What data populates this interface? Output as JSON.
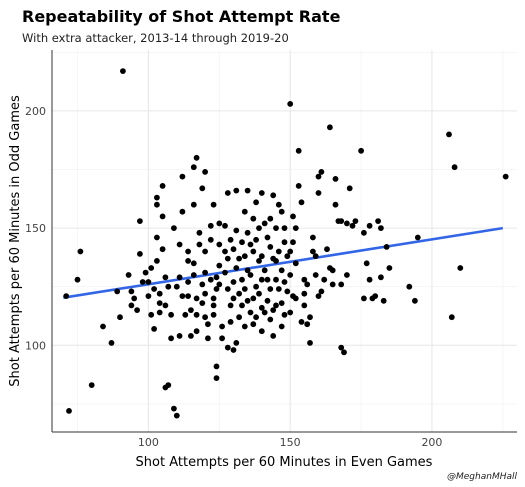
{
  "header": {
    "title": "Repeatability of Shot Attempt Rate",
    "subtitle": "With extra attacker, 2013-14 through 2019-20"
  },
  "caption": "@MeghanMHall",
  "chart_data": {
    "type": "scatter",
    "title": "Repeatability of Shot Attempt Rate",
    "subtitle": "With extra attacker, 2013-14 through 2019-20",
    "xlabel": "Shot Attempts per 60 Minutes in Even Games",
    "ylabel": "Shot Attempts per 60 Minutes in Odd Games",
    "xlim": [
      66,
      230
    ],
    "ylim": [
      63,
      226
    ],
    "xticks": [
      100,
      150,
      200
    ],
    "yticks": [
      100,
      150,
      200
    ],
    "grid": true,
    "point_color": "#000000",
    "trend_color": "#3366e6",
    "trend_line": {
      "x": [
        70,
        225
      ],
      "y": [
        120.3,
        150.0
      ]
    },
    "points": [
      [
        71,
        121
      ],
      [
        72,
        72
      ],
      [
        75,
        128
      ],
      [
        76,
        140
      ],
      [
        80,
        83
      ],
      [
        84,
        108
      ],
      [
        87,
        101
      ],
      [
        89,
        123
      ],
      [
        90,
        112
      ],
      [
        91,
        217
      ],
      [
        93,
        130
      ],
      [
        94,
        123
      ],
      [
        94,
        117
      ],
      [
        95,
        120
      ],
      [
        96,
        115
      ],
      [
        97,
        153
      ],
      [
        97,
        139
      ],
      [
        98,
        127
      ],
      [
        99,
        131
      ],
      [
        100,
        127
      ],
      [
        100,
        121
      ],
      [
        101,
        133
      ],
      [
        101,
        113
      ],
      [
        102,
        124
      ],
      [
        102,
        107
      ],
      [
        103,
        163
      ],
      [
        103,
        160
      ],
      [
        103,
        146
      ],
      [
        103,
        136
      ],
      [
        104,
        122
      ],
      [
        104,
        118
      ],
      [
        104,
        114
      ],
      [
        105,
        168
      ],
      [
        105,
        155
      ],
      [
        105,
        141
      ],
      [
        106,
        129
      ],
      [
        106,
        117
      ],
      [
        106,
        82
      ],
      [
        107,
        83
      ],
      [
        107,
        125
      ],
      [
        108,
        113
      ],
      [
        108,
        103
      ],
      [
        109,
        150
      ],
      [
        109,
        73
      ],
      [
        110,
        70
      ],
      [
        110,
        125
      ],
      [
        111,
        143
      ],
      [
        111,
        129
      ],
      [
        111,
        104
      ],
      [
        112,
        172
      ],
      [
        112,
        157
      ],
      [
        112,
        121
      ],
      [
        113,
        113
      ],
      [
        114,
        140
      ],
      [
        114,
        136
      ],
      [
        114,
        127
      ],
      [
        114,
        121
      ],
      [
        115,
        115
      ],
      [
        115,
        104
      ],
      [
        116,
        176
      ],
      [
        116,
        160
      ],
      [
        116,
        135
      ],
      [
        116,
        130
      ],
      [
        117,
        180
      ],
      [
        117,
        120
      ],
      [
        117,
        113
      ],
      [
        117,
        106
      ],
      [
        118,
        148
      ],
      [
        118,
        143
      ],
      [
        119,
        167
      ],
      [
        119,
        126
      ],
      [
        119,
        118
      ],
      [
        120,
        174
      ],
      [
        120,
        140
      ],
      [
        120,
        131
      ],
      [
        120,
        122
      ],
      [
        120,
        112
      ],
      [
        121,
        109
      ],
      [
        121,
        103
      ],
      [
        122,
        151
      ],
      [
        122,
        145
      ],
      [
        122,
        128
      ],
      [
        123,
        160
      ],
      [
        123,
        120
      ],
      [
        123,
        117
      ],
      [
        123,
        113
      ],
      [
        124,
        129
      ],
      [
        124,
        124
      ],
      [
        124,
        91
      ],
      [
        124,
        86
      ],
      [
        125,
        152
      ],
      [
        125,
        143
      ],
      [
        125,
        134
      ],
      [
        125,
        126
      ],
      [
        126,
        108
      ],
      [
        126,
        103
      ],
      [
        127,
        151
      ],
      [
        127,
        140
      ],
      [
        127,
        131
      ],
      [
        128,
        165
      ],
      [
        128,
        137
      ],
      [
        128,
        124
      ],
      [
        128,
        99
      ],
      [
        129,
        145
      ],
      [
        129,
        117
      ],
      [
        129,
        110
      ],
      [
        130,
        141
      ],
      [
        130,
        127
      ],
      [
        130,
        120
      ],
      [
        130,
        98
      ],
      [
        131,
        166
      ],
      [
        131,
        149
      ],
      [
        131,
        133
      ],
      [
        131,
        101
      ],
      [
        132,
        137
      ],
      [
        132,
        122
      ],
      [
        132,
        112
      ],
      [
        133,
        144
      ],
      [
        133,
        128
      ],
      [
        133,
        117
      ],
      [
        134,
        157
      ],
      [
        134,
        138
      ],
      [
        134,
        124
      ],
      [
        134,
        108
      ],
      [
        135,
        166
      ],
      [
        135,
        148
      ],
      [
        135,
        132
      ],
      [
        135,
        119
      ],
      [
        136,
        143
      ],
      [
        136,
        130
      ],
      [
        136,
        114
      ],
      [
        137,
        154
      ],
      [
        137,
        140
      ],
      [
        137,
        120
      ],
      [
        137,
        109
      ],
      [
        138,
        161
      ],
      [
        138,
        145
      ],
      [
        138,
        125
      ],
      [
        138,
        112
      ],
      [
        139,
        150
      ],
      [
        139,
        136
      ],
      [
        139,
        122
      ],
      [
        140,
        165
      ],
      [
        140,
        138
      ],
      [
        140,
        128
      ],
      [
        140,
        116
      ],
      [
        140,
        106
      ],
      [
        141,
        152
      ],
      [
        141,
        132
      ],
      [
        141,
        114
      ],
      [
        142,
        146
      ],
      [
        142,
        128
      ],
      [
        142,
        119
      ],
      [
        143,
        154
      ],
      [
        143,
        142
      ],
      [
        143,
        124
      ],
      [
        143,
        111
      ],
      [
        144,
        164
      ],
      [
        144,
        137
      ],
      [
        144,
        115
      ],
      [
        144,
        104
      ],
      [
        145,
        150
      ],
      [
        145,
        136
      ],
      [
        145,
        128
      ],
      [
        145,
        117
      ],
      [
        146,
        160
      ],
      [
        146,
        140
      ],
      [
        146,
        124
      ],
      [
        147,
        157
      ],
      [
        147,
        132
      ],
      [
        147,
        118
      ],
      [
        147,
        108
      ],
      [
        148,
        150
      ],
      [
        148,
        144
      ],
      [
        148,
        127
      ],
      [
        148,
        113
      ],
      [
        149,
        138
      ],
      [
        149,
        123
      ],
      [
        150,
        203
      ],
      [
        150,
        140
      ],
      [
        150,
        130
      ],
      [
        150,
        114
      ],
      [
        151,
        155
      ],
      [
        151,
        144
      ],
      [
        151,
        121
      ],
      [
        152,
        150
      ],
      [
        152,
        135
      ],
      [
        152,
        120
      ],
      [
        153,
        183
      ],
      [
        153,
        168
      ],
      [
        154,
        161
      ],
      [
        154,
        110
      ],
      [
        155,
        128
      ],
      [
        155,
        122
      ],
      [
        155,
        117
      ],
      [
        156,
        126
      ],
      [
        156,
        109
      ],
      [
        157,
        112
      ],
      [
        157,
        101
      ],
      [
        158,
        146
      ],
      [
        158,
        140
      ],
      [
        159,
        138
      ],
      [
        159,
        130
      ],
      [
        160,
        172
      ],
      [
        160,
        165
      ],
      [
        160,
        121
      ],
      [
        161,
        174
      ],
      [
        161,
        123
      ],
      [
        162,
        128
      ],
      [
        163,
        141
      ],
      [
        164,
        193
      ],
      [
        164,
        133
      ],
      [
        165,
        132
      ],
      [
        165,
        126
      ],
      [
        166,
        171
      ],
      [
        166,
        160
      ],
      [
        167,
        153
      ],
      [
        168,
        153
      ],
      [
        168,
        126
      ],
      [
        168,
        99
      ],
      [
        169,
        97
      ],
      [
        170,
        152
      ],
      [
        170,
        130
      ],
      [
        171,
        167
      ],
      [
        172,
        151
      ],
      [
        173,
        153
      ],
      [
        175,
        183
      ],
      [
        176,
        148
      ],
      [
        176,
        120
      ],
      [
        177,
        135
      ],
      [
        178,
        151
      ],
      [
        178,
        128
      ],
      [
        179,
        120
      ],
      [
        180,
        121
      ],
      [
        181,
        153
      ],
      [
        182,
        150
      ],
      [
        182,
        129
      ],
      [
        183,
        119
      ],
      [
        184,
        142
      ],
      [
        185,
        133
      ],
      [
        192,
        125
      ],
      [
        194,
        119
      ],
      [
        195,
        146
      ],
      [
        206,
        190
      ],
      [
        207,
        112
      ],
      [
        208,
        176
      ],
      [
        210,
        133
      ],
      [
        226,
        172
      ]
    ]
  }
}
